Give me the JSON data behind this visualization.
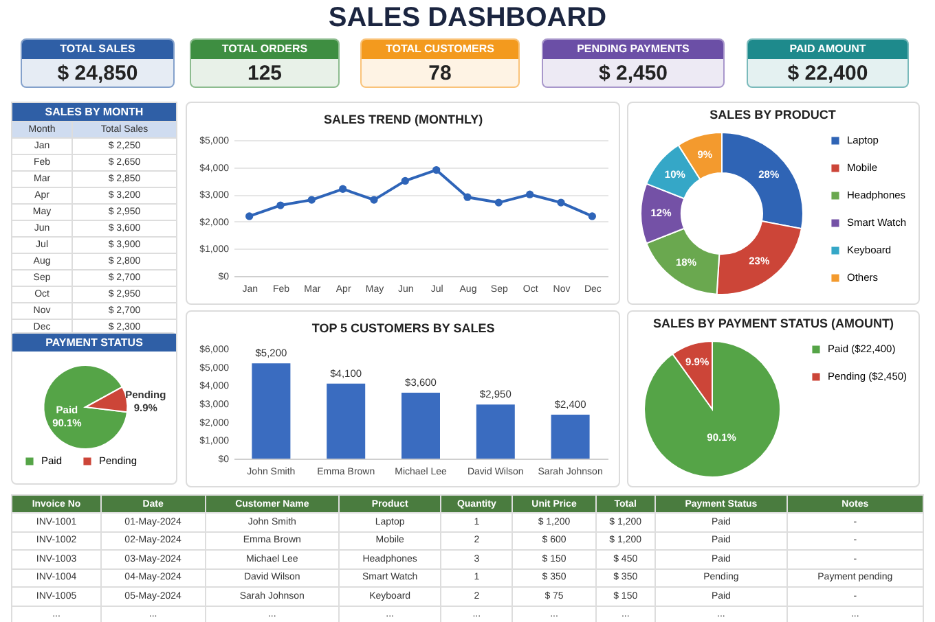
{
  "chart_data": [
    {
      "type": "other",
      "title": "SALES DASHBOARD",
      "categories": [
        "TOTAL SALES",
        "TOTAL ORDERS",
        "TOTAL CUSTOMERS",
        "PENDING PAYMENTS",
        "PAID AMOUNT"
      ],
      "value_labels": [
        "$ 24,850",
        "125",
        "78",
        "$ 2,450",
        "$ 22,400"
      ],
      "colors": [
        "#2f5fa6",
        "#3e8e41",
        "#f39a1e",
        "#6b4fa6",
        "#1e8a8c"
      ]
    },
    {
      "type": "other",
      "title": "SALES BY MONTH",
      "xlabel": "Month",
      "ylabel": "Total Sales",
      "categories": [
        "Jan",
        "Feb",
        "Mar",
        "Apr",
        "May",
        "Jun",
        "Jul",
        "Aug",
        "Sep",
        "Oct",
        "Nov",
        "Dec"
      ],
      "value_labels": [
        "$ 2,250",
        "$ 2,650",
        "$ 2,850",
        "$ 3,200",
        "$ 2,950",
        "$ 3,600",
        "$ 3,900",
        "$ 2,800",
        "$ 2,700",
        "$ 2,950",
        "$ 2,700",
        "$ 2,300"
      ]
    },
    {
      "type": "line",
      "title": "SALES TREND (MONTHLY)",
      "categories": [
        "Jan",
        "Feb",
        "Mar",
        "Apr",
        "May",
        "Jun",
        "Jul",
        "Aug",
        "Sep",
        "Oct",
        "Nov",
        "Dec"
      ],
      "series": [
        {
          "color": "#2e64b8",
          "values": [
            2200,
            2600,
            2800,
            3200,
            2800,
            3500,
            3900,
            2900,
            2700,
            3000,
            2700,
            2200
          ]
        }
      ],
      "ylim": [
        0,
        5000
      ],
      "yticks": [
        {
          "value": 0,
          "label": "$0"
        },
        {
          "value": 1000,
          "label": "$1,000"
        },
        {
          "value": 2000,
          "label": "$2,000"
        },
        {
          "value": 3000,
          "label": "$3,000"
        },
        {
          "value": 4000,
          "label": "$4,000"
        },
        {
          "value": 5000,
          "label": "$5,000"
        }
      ],
      "grid": "y",
      "marker": "circle",
      "line_style": "solid"
    },
    {
      "type": "donut",
      "title": "SALES BY PRODUCT",
      "categories": [
        "Laptop",
        "Mobile",
        "Headphones",
        "Smart Watch",
        "Keyboard",
        "Others"
      ],
      "values": [
        28,
        23,
        18,
        12,
        10,
        9
      ],
      "value_labels": [
        "28%",
        "23%",
        "18%",
        "12%",
        "10%",
        "9%"
      ],
      "colors": [
        "#2f64b5",
        "#cc4538",
        "#6aa84f",
        "#7451a6",
        "#35a7c7",
        "#f39a2e"
      ],
      "legend": "right"
    },
    {
      "type": "pie",
      "title": "PAYMENT STATUS",
      "categories": [
        "Paid",
        "Pending"
      ],
      "values": [
        90.1,
        9.9
      ],
      "value_labels": [
        "90.1%",
        "9.9%"
      ],
      "colors": [
        "#55a447",
        "#cc4538"
      ],
      "legend": "bottom"
    },
    {
      "type": "bar",
      "title": "TOP 5 CUSTOMERS BY SALES",
      "categories": [
        "John Smith",
        "Emma Brown",
        "Michael Lee",
        "David Wilson",
        "Sarah Johnson"
      ],
      "series": [
        {
          "color": "#3a6cc0",
          "values": [
            5200,
            4100,
            3600,
            2950,
            2400
          ]
        }
      ],
      "value_labels": [
        "$5,200",
        "$4,100",
        "$3,600",
        "$2,950",
        "$2,400"
      ],
      "ylim": [
        0,
        6000
      ],
      "yticks": [
        {
          "value": 0,
          "label": "$0"
        },
        {
          "value": 1000,
          "label": "$1,000"
        },
        {
          "value": 2000,
          "label": "$2,000"
        },
        {
          "value": 3000,
          "label": "$3,000"
        },
        {
          "value": 4000,
          "label": "$4,000"
        },
        {
          "value": 5000,
          "label": "$5,000"
        },
        {
          "value": 6000,
          "label": "$6,000"
        }
      ],
      "grid": false
    },
    {
      "type": "pie",
      "title": "SALES BY PAYMENT STATUS (AMOUNT)",
      "categories": [
        "Paid ($22,400)",
        "Pending ($2,450)"
      ],
      "values": [
        90.1,
        9.9
      ],
      "value_labels": [
        "90.1%",
        "9.9%"
      ],
      "colors": [
        "#55a447",
        "#cc4538"
      ],
      "legend": "right"
    },
    {
      "type": "other",
      "categories": [
        "Invoice No",
        "Date",
        "Customer Name",
        "Product",
        "Quantity",
        "Unit Price",
        "Total",
        "Payment Status",
        "Notes"
      ],
      "cell_labels": [
        [
          "INV-1001",
          "01-May-2024",
          "John Smith",
          "Laptop",
          "1",
          "$ 1,200",
          "$ 1,200",
          "Paid",
          "-"
        ],
        [
          "INV-1002",
          "02-May-2024",
          "Emma Brown",
          "Mobile",
          "2",
          "$ 600",
          "$ 1,200",
          "Paid",
          "-"
        ],
        [
          "INV-1003",
          "03-May-2024",
          "Michael Lee",
          "Headphones",
          "3",
          "$ 150",
          "$ 450",
          "Paid",
          "-"
        ],
        [
          "INV-1004",
          "04-May-2024",
          "David Wilson",
          "Smart Watch",
          "1",
          "$ 350",
          "$ 350",
          "Pending",
          "Payment pending"
        ],
        [
          "INV-1005",
          "05-May-2024",
          "Sarah Johnson",
          "Keyboard",
          "2",
          "$ 75",
          "$ 150",
          "Paid",
          "-"
        ],
        [
          "...",
          "...",
          "...",
          "...",
          "...",
          "...",
          "...",
          "...",
          "..."
        ]
      ]
    }
  ]
}
